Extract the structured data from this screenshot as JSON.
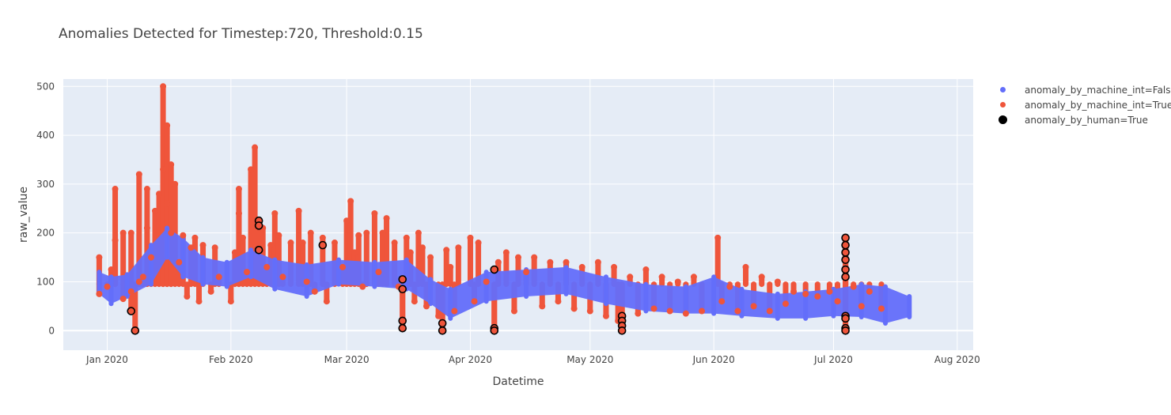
{
  "chart_data": {
    "type": "scatter",
    "title": "Anomalies Detected for Timestep:720, Threshold:0.15",
    "xlabel": "Datetime",
    "ylabel": "raw_value",
    "x_range": [
      "2019-12-21",
      "2020-08-05"
    ],
    "ylim": [
      -40,
      515
    ],
    "x_ticks": [
      {
        "date": "2020-01-01",
        "label": "Jan 2020"
      },
      {
        "date": "2020-02-01",
        "label": "Feb 2020"
      },
      {
        "date": "2020-03-01",
        "label": "Mar 2020"
      },
      {
        "date": "2020-04-01",
        "label": "Apr 2020"
      },
      {
        "date": "2020-05-01",
        "label": "May 2020"
      },
      {
        "date": "2020-06-01",
        "label": "Jun 2020"
      },
      {
        "date": "2020-07-01",
        "label": "Jul 2020"
      },
      {
        "date": "2020-08-01",
        "label": "Aug 2020"
      }
    ],
    "y_ticks": [
      0,
      100,
      200,
      300,
      400,
      500
    ],
    "grid": true,
    "legend_position": "right",
    "series": [
      {
        "name": "anomaly_by_machine_int=False",
        "color": "#636efa",
        "bands": [
          {
            "x": "2019-12-30",
            "low": 75,
            "high": 120
          },
          {
            "x": "2020-01-02",
            "low": 55,
            "high": 110
          },
          {
            "x": "2020-01-06",
            "low": 70,
            "high": 115
          },
          {
            "x": "2020-01-12",
            "low": 95,
            "high": 175
          },
          {
            "x": "2020-01-16",
            "low": 150,
            "high": 210
          },
          {
            "x": "2020-01-20",
            "low": 110,
            "high": 190
          },
          {
            "x": "2020-01-25",
            "low": 95,
            "high": 150
          },
          {
            "x": "2020-01-31",
            "low": 90,
            "high": 140
          },
          {
            "x": "2020-02-06",
            "low": 110,
            "high": 165
          },
          {
            "x": "2020-02-12",
            "low": 85,
            "high": 145
          },
          {
            "x": "2020-02-20",
            "low": 70,
            "high": 135
          },
          {
            "x": "2020-02-28",
            "low": 95,
            "high": 145
          },
          {
            "x": "2020-03-08",
            "low": 90,
            "high": 140
          },
          {
            "x": "2020-03-16",
            "low": 85,
            "high": 145
          },
          {
            "x": "2020-03-22",
            "low": 55,
            "high": 105
          },
          {
            "x": "2020-03-27",
            "low": 25,
            "high": 85
          },
          {
            "x": "2020-04-05",
            "low": 60,
            "high": 120
          },
          {
            "x": "2020-04-15",
            "low": 70,
            "high": 125
          },
          {
            "x": "2020-04-25",
            "low": 75,
            "high": 130
          },
          {
            "x": "2020-05-05",
            "low": 55,
            "high": 110
          },
          {
            "x": "2020-05-15",
            "low": 40,
            "high": 95
          },
          {
            "x": "2020-05-25",
            "low": 35,
            "high": 90
          },
          {
            "x": "2020-06-01",
            "low": 35,
            "high": 110
          },
          {
            "x": "2020-06-08",
            "low": 30,
            "high": 85
          },
          {
            "x": "2020-06-17",
            "low": 25,
            "high": 75
          },
          {
            "x": "2020-06-24",
            "low": 25,
            "high": 80
          },
          {
            "x": "2020-07-01",
            "low": 30,
            "high": 85
          },
          {
            "x": "2020-07-08",
            "low": 28,
            "high": 95
          },
          {
            "x": "2020-07-14",
            "low": 15,
            "high": 90
          },
          {
            "x": "2020-07-20",
            "low": 28,
            "high": 70
          }
        ]
      },
      {
        "name": "anomaly_by_machine_int=True",
        "color": "#ef553b",
        "points": [
          [
            "2019-12-30",
            75
          ],
          [
            "2019-12-30",
            150
          ],
          [
            "2020-01-01",
            90
          ],
          [
            "2020-01-02",
            125
          ],
          [
            "2020-01-03",
            185
          ],
          [
            "2020-01-03",
            290
          ],
          [
            "2020-01-05",
            65
          ],
          [
            "2020-01-05",
            200
          ],
          [
            "2020-01-07",
            80
          ],
          [
            "2020-01-07",
            200
          ],
          [
            "2020-01-07",
            40
          ],
          [
            "2020-01-08",
            0
          ],
          [
            "2020-01-09",
            100
          ],
          [
            "2020-01-09",
            320
          ],
          [
            "2020-01-10",
            110
          ],
          [
            "2020-01-11",
            210
          ],
          [
            "2020-01-11",
            290
          ],
          [
            "2020-01-12",
            150
          ],
          [
            "2020-01-13",
            245
          ],
          [
            "2020-01-14",
            280
          ],
          [
            "2020-01-15",
            330
          ],
          [
            "2020-01-15",
            500
          ],
          [
            "2020-01-16",
            420
          ],
          [
            "2020-01-16",
            260
          ],
          [
            "2020-01-17",
            340
          ],
          [
            "2020-01-17",
            200
          ],
          [
            "2020-01-18",
            300
          ],
          [
            "2020-01-19",
            140
          ],
          [
            "2020-01-20",
            195
          ],
          [
            "2020-01-21",
            70
          ],
          [
            "2020-01-22",
            170
          ],
          [
            "2020-01-23",
            190
          ],
          [
            "2020-01-24",
            60
          ],
          [
            "2020-01-25",
            175
          ],
          [
            "2020-01-27",
            80
          ],
          [
            "2020-01-28",
            170
          ],
          [
            "2020-01-29",
            110
          ],
          [
            "2020-02-01",
            60
          ],
          [
            "2020-02-02",
            160
          ],
          [
            "2020-02-03",
            290
          ],
          [
            "2020-02-03",
            240
          ],
          [
            "2020-02-04",
            190
          ],
          [
            "2020-02-05",
            120
          ],
          [
            "2020-02-06",
            330
          ],
          [
            "2020-02-07",
            375
          ],
          [
            "2020-02-08",
            220
          ],
          [
            "2020-02-09",
            210
          ],
          [
            "2020-02-10",
            130
          ],
          [
            "2020-02-11",
            175
          ],
          [
            "2020-02-12",
            240
          ],
          [
            "2020-02-13",
            195
          ],
          [
            "2020-02-14",
            110
          ],
          [
            "2020-02-16",
            180
          ],
          [
            "2020-02-18",
            245
          ],
          [
            "2020-02-19",
            180
          ],
          [
            "2020-02-20",
            100
          ],
          [
            "2020-02-21",
            200
          ],
          [
            "2020-02-22",
            80
          ],
          [
            "2020-02-24",
            190
          ],
          [
            "2020-02-25",
            60
          ],
          [
            "2020-02-27",
            180
          ],
          [
            "2020-02-29",
            130
          ],
          [
            "2020-03-01",
            225
          ],
          [
            "2020-03-02",
            265
          ],
          [
            "2020-03-03",
            160
          ],
          [
            "2020-03-04",
            195
          ],
          [
            "2020-03-05",
            90
          ],
          [
            "2020-03-06",
            200
          ],
          [
            "2020-03-08",
            240
          ],
          [
            "2020-03-09",
            120
          ],
          [
            "2020-03-10",
            200
          ],
          [
            "2020-03-11",
            230
          ],
          [
            "2020-03-13",
            180
          ],
          [
            "2020-03-14",
            90
          ],
          [
            "2020-03-15",
            20
          ],
          [
            "2020-03-15",
            5
          ],
          [
            "2020-03-16",
            190
          ],
          [
            "2020-03-17",
            160
          ],
          [
            "2020-03-18",
            60
          ],
          [
            "2020-03-19",
            200
          ],
          [
            "2020-03-20",
            170
          ],
          [
            "2020-03-21",
            50
          ],
          [
            "2020-03-22",
            150
          ],
          [
            "2020-03-24",
            30
          ],
          [
            "2020-03-25",
            15
          ],
          [
            "2020-03-25",
            0
          ],
          [
            "2020-03-26",
            165
          ],
          [
            "2020-03-27",
            130
          ],
          [
            "2020-03-28",
            40
          ],
          [
            "2020-03-29",
            170
          ],
          [
            "2020-04-01",
            190
          ],
          [
            "2020-04-02",
            60
          ],
          [
            "2020-04-03",
            180
          ],
          [
            "2020-04-05",
            100
          ],
          [
            "2020-04-07",
            5
          ],
          [
            "2020-04-07",
            0
          ],
          [
            "2020-04-08",
            140
          ],
          [
            "2020-04-10",
            160
          ],
          [
            "2020-04-12",
            40
          ],
          [
            "2020-04-13",
            150
          ],
          [
            "2020-04-15",
            120
          ],
          [
            "2020-04-17",
            150
          ],
          [
            "2020-04-19",
            50
          ],
          [
            "2020-04-21",
            140
          ],
          [
            "2020-04-23",
            60
          ],
          [
            "2020-04-25",
            140
          ],
          [
            "2020-04-27",
            45
          ],
          [
            "2020-04-29",
            130
          ],
          [
            "2020-05-01",
            40
          ],
          [
            "2020-05-03",
            140
          ],
          [
            "2020-05-05",
            30
          ],
          [
            "2020-05-07",
            130
          ],
          [
            "2020-05-08",
            20
          ],
          [
            "2020-05-09",
            0
          ],
          [
            "2020-05-09",
            30
          ],
          [
            "2020-05-11",
            110
          ],
          [
            "2020-05-13",
            35
          ],
          [
            "2020-05-15",
            125
          ],
          [
            "2020-05-17",
            45
          ],
          [
            "2020-05-19",
            110
          ],
          [
            "2020-05-21",
            40
          ],
          [
            "2020-05-23",
            100
          ],
          [
            "2020-05-25",
            35
          ],
          [
            "2020-05-27",
            110
          ],
          [
            "2020-05-29",
            40
          ],
          [
            "2020-06-02",
            190
          ],
          [
            "2020-06-03",
            60
          ],
          [
            "2020-06-05",
            90
          ],
          [
            "2020-06-07",
            40
          ],
          [
            "2020-06-09",
            130
          ],
          [
            "2020-06-11",
            50
          ],
          [
            "2020-06-13",
            110
          ],
          [
            "2020-06-15",
            40
          ],
          [
            "2020-06-17",
            100
          ],
          [
            "2020-06-19",
            55
          ],
          [
            "2020-06-21",
            80
          ],
          [
            "2020-06-24",
            75
          ],
          [
            "2020-06-27",
            70
          ],
          [
            "2020-06-30",
            80
          ],
          [
            "2020-07-02",
            60
          ],
          [
            "2020-07-04",
            190
          ],
          [
            "2020-07-04",
            170
          ],
          [
            "2020-07-04",
            150
          ],
          [
            "2020-07-04",
            130
          ],
          [
            "2020-07-04",
            30
          ],
          [
            "2020-07-04",
            5
          ],
          [
            "2020-07-04",
            0
          ],
          [
            "2020-07-06",
            90
          ],
          [
            "2020-07-08",
            50
          ],
          [
            "2020-07-10",
            80
          ],
          [
            "2020-07-13",
            45
          ]
        ]
      },
      {
        "name": "anomaly_by_human=True",
        "color": "#000000",
        "points": [
          [
            "2020-01-07",
            40
          ],
          [
            "2020-01-08",
            0
          ],
          [
            "2020-02-08",
            225
          ],
          [
            "2020-02-08",
            215
          ],
          [
            "2020-02-08",
            165
          ],
          [
            "2020-02-24",
            175
          ],
          [
            "2020-03-15",
            20
          ],
          [
            "2020-03-15",
            5
          ],
          [
            "2020-03-15",
            105
          ],
          [
            "2020-03-15",
            85
          ],
          [
            "2020-03-25",
            15
          ],
          [
            "2020-03-25",
            0
          ],
          [
            "2020-04-07",
            5
          ],
          [
            "2020-04-07",
            0
          ],
          [
            "2020-04-07",
            125
          ],
          [
            "2020-05-09",
            30
          ],
          [
            "2020-05-09",
            20
          ],
          [
            "2020-05-09",
            10
          ],
          [
            "2020-05-09",
            0
          ],
          [
            "2020-07-04",
            190
          ],
          [
            "2020-07-04",
            175
          ],
          [
            "2020-07-04",
            160
          ],
          [
            "2020-07-04",
            145
          ],
          [
            "2020-07-04",
            125
          ],
          [
            "2020-07-04",
            110
          ],
          [
            "2020-07-04",
            30
          ],
          [
            "2020-07-04",
            25
          ],
          [
            "2020-07-04",
            5
          ],
          [
            "2020-07-04",
            0
          ]
        ]
      }
    ]
  }
}
